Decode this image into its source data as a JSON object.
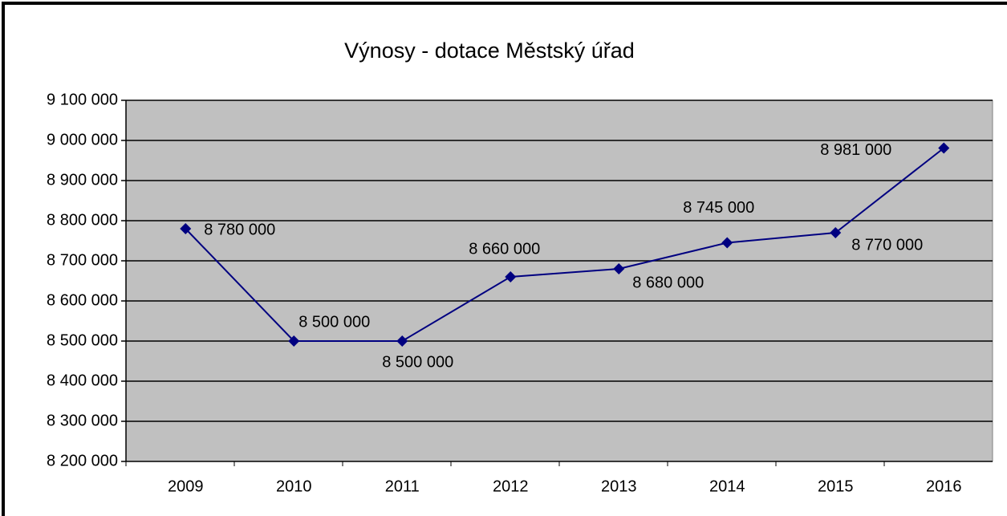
{
  "chart_data": {
    "type": "line",
    "title": "Výnosy - dotace Městský úřad",
    "categories": [
      "2009",
      "2010",
      "2011",
      "2012",
      "2013",
      "2014",
      "2015",
      "2016"
    ],
    "series": [
      {
        "name": "Výnosy",
        "color": "#000080",
        "values": [
          8780000,
          8500000,
          8500000,
          8660000,
          8680000,
          8745000,
          8770000,
          8981000
        ],
        "value_labels": [
          "8 780 000",
          "8 500 000",
          "8 500 000",
          "8 660 000",
          "8 680 000",
          "8 745 000",
          "8 770 000",
          "8 981 000"
        ]
      }
    ],
    "ylim": [
      8200000,
      9100000
    ],
    "yticks": [
      {
        "value": 8200000,
        "label": "8 200 000"
      },
      {
        "value": 8300000,
        "label": "8 300 000"
      },
      {
        "value": 8400000,
        "label": "8 400 000"
      },
      {
        "value": 8500000,
        "label": "8 500 000"
      },
      {
        "value": 8600000,
        "label": "8 600 000"
      },
      {
        "value": 8700000,
        "label": "8 700 000"
      },
      {
        "value": 8800000,
        "label": "8 800 000"
      },
      {
        "value": 8900000,
        "label": "8 900 000"
      },
      {
        "value": 9000000,
        "label": "9 000 000"
      },
      {
        "value": 9100000,
        "label": "9 100 000"
      }
    ],
    "grid": true,
    "plot_background": "#c0c0c0"
  }
}
